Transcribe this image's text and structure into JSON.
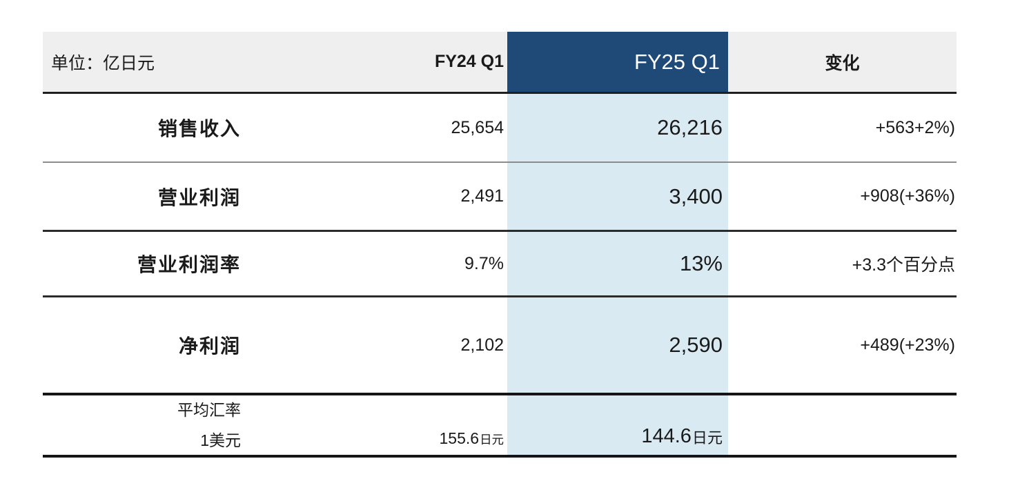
{
  "table": {
    "unit_label": "单位：亿日元",
    "columns": {
      "fy24": "FY24 Q1",
      "fy25": "FY25 Q1",
      "change": "变化"
    },
    "rows": [
      {
        "label": "销售收入",
        "fy24": "25,654",
        "fy25": "26,216",
        "change": "+563+2%)"
      },
      {
        "label": "营业利润",
        "fy24": "2,491",
        "fy25": "3,400",
        "change": "+908(+36%)"
      },
      {
        "label": "营业利润率",
        "fy24": "9.7%",
        "fy25": "13%",
        "change": "+3.3个百分点"
      },
      {
        "label": "净利润",
        "fy24": "2,102",
        "fy25": "2,590",
        "change": "+489(+23%)"
      }
    ],
    "footer": {
      "label_line1": "平均汇率",
      "label_line2": "1美元",
      "fy24_value": "155.6",
      "fy24_unit": "日元",
      "fy25_value": "144.6",
      "fy25_unit": "日元",
      "change": ""
    },
    "colors": {
      "header_accent": "#1F4977",
      "highlight_column": "#D9EAF2",
      "header_bg": "#EFEFEF"
    }
  }
}
